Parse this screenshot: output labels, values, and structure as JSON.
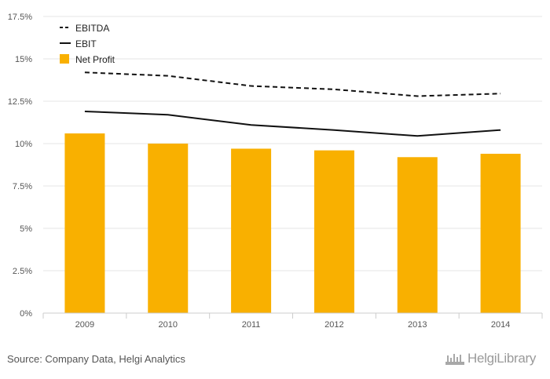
{
  "chart_data": {
    "type": "bar",
    "categories": [
      "2009",
      "2010",
      "2011",
      "2012",
      "2013",
      "2014"
    ],
    "series": [
      {
        "name": "EBITDA",
        "kind": "line",
        "style": "dashed",
        "color": "#111111",
        "values": [
          14.2,
          14.0,
          13.4,
          13.2,
          12.8,
          12.95
        ]
      },
      {
        "name": "EBIT",
        "kind": "line",
        "style": "solid",
        "color": "#111111",
        "values": [
          11.9,
          11.7,
          11.1,
          10.8,
          10.45,
          10.8
        ]
      },
      {
        "name": "Net Profit",
        "kind": "bar",
        "color": "#f9b000",
        "values": [
          10.6,
          10.0,
          9.7,
          9.6,
          9.2,
          9.4
        ]
      }
    ],
    "y_ticks": [
      "0%",
      "2.5%",
      "5%",
      "7.5%",
      "10%",
      "12.5%",
      "15%",
      "17.5%"
    ],
    "ylim": [
      0,
      17.5
    ],
    "grid": true,
    "legend_position": "top-left"
  },
  "footer": {
    "source": "Source: Company Data, Helgi Analytics",
    "brand": "HelgiLibrary"
  },
  "colors": {
    "bar": "#f9b000",
    "grid": "#e6e6e6",
    "axis": "#cccccc"
  }
}
